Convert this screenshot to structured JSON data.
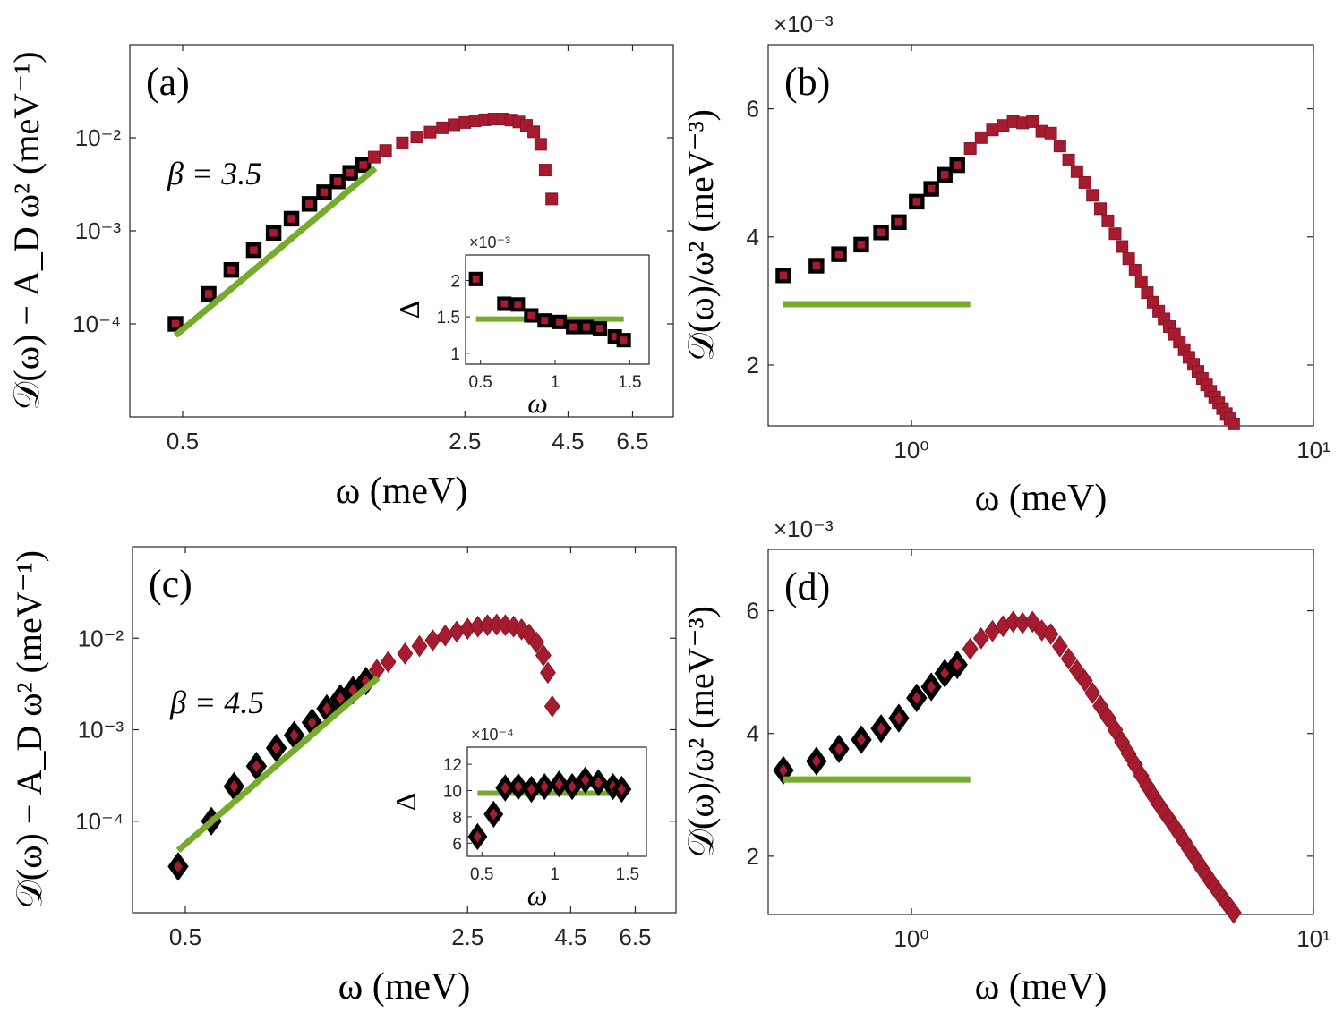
{
  "colors": {
    "marker_fill": "#a61b2f",
    "marker_edge": "#8a1526",
    "highlight_edge": "#000000",
    "fit_line": "#77ab2c",
    "axis": "#262626"
  },
  "chart_data": [
    {
      "panel": "a",
      "type": "scatter",
      "scale": "loglog",
      "marker": "square",
      "panel_label": "(a)",
      "annotation": "β = 3.5",
      "ylabel": "𝒟(ω) − A_D ω² (meV⁻¹)",
      "xlabel": "ω (meV)",
      "xlim": [
        0.37,
        8.2
      ],
      "ylim": [
        1e-05,
        0.1
      ],
      "xticks": [
        0.5,
        2.5,
        4.5,
        6.5
      ],
      "xtick_labels": [
        "0.5",
        "2.5",
        "4.5",
        "6.5"
      ],
      "yticks": [
        0.0001,
        0.001,
        0.01
      ],
      "ytick_labels": [
        "10⁻⁴",
        "10⁻³",
        "10⁻²"
      ],
      "x": [
        0.48,
        0.58,
        0.66,
        0.75,
        0.84,
        0.93,
        1.03,
        1.12,
        1.21,
        1.3,
        1.4,
        1.49,
        1.59,
        1.75,
        1.9,
        2.05,
        2.2,
        2.35,
        2.5,
        2.65,
        2.8,
        2.95,
        3.1,
        3.25,
        3.4,
        3.55,
        3.7,
        3.85,
        3.95,
        4.1
      ],
      "y": [
        0.0001,
        0.00021,
        0.00038,
        0.00062,
        0.00095,
        0.00135,
        0.00195,
        0.0026,
        0.0034,
        0.0042,
        0.0051,
        0.0062,
        0.0073,
        0.0088,
        0.0102,
        0.0115,
        0.0128,
        0.0138,
        0.0146,
        0.0152,
        0.0156,
        0.0159,
        0.0159,
        0.0155,
        0.0148,
        0.0136,
        0.0116,
        0.0085,
        0.0045,
        0.0022
      ],
      "highlight_count": 11,
      "fit_line": {
        "x": [
          0.48,
          1.5
        ],
        "y": [
          7.5e-05,
          0.0047
        ]
      },
      "inset": {
        "xlabel": "ω",
        "ylabel": "Δ",
        "multiplier": "×10⁻³",
        "xlim": [
          0.4,
          1.63
        ],
        "ylim": [
          0.85,
          2.35
        ],
        "xticks": [
          0.5,
          1,
          1.5
        ],
        "xtick_labels": [
          "0.5",
          "1",
          "1.5"
        ],
        "yticks": [
          1,
          1.5,
          2
        ],
        "ytick_labels": [
          "1",
          "1.5",
          "2"
        ],
        "x": [
          0.47,
          0.66,
          0.75,
          0.84,
          0.93,
          1.03,
          1.12,
          1.21,
          1.3,
          1.4,
          1.46
        ],
        "y": [
          2.02,
          1.68,
          1.67,
          1.52,
          1.45,
          1.43,
          1.36,
          1.36,
          1.34,
          1.23,
          1.18
        ],
        "fit_line": {
          "x": [
            0.47,
            1.46
          ],
          "y": [
            1.47,
            1.47
          ]
        }
      }
    },
    {
      "panel": "b",
      "type": "scatter",
      "scale": "semilogx",
      "marker": "square",
      "panel_label": "(b)",
      "multiplier": "×10⁻³",
      "ylabel": "𝒟(ω)/ω² (meV⁻³)",
      "xlabel": "ω (meV)",
      "xlim": [
        0.44,
        10
      ],
      "ylim": [
        1.05,
        7
      ],
      "xticks": [
        1,
        10
      ],
      "xtick_labels": [
        "10⁰",
        "10¹"
      ],
      "yticks": [
        2,
        4,
        6
      ],
      "ytick_labels": [
        "2",
        "4",
        "6"
      ],
      "x": [
        0.48,
        0.58,
        0.66,
        0.75,
        0.84,
        0.93,
        1.03,
        1.12,
        1.21,
        1.3,
        1.4,
        1.49,
        1.59,
        1.69,
        1.79,
        1.89,
        2.0,
        2.11,
        2.22,
        2.34,
        2.46,
        2.58,
        2.7,
        2.82,
        2.95,
        3.08,
        3.21,
        3.34,
        3.47,
        3.6,
        3.73,
        3.86,
        3.99,
        4.12,
        4.25,
        4.38,
        4.51,
        4.64,
        4.77,
        4.9,
        5.03,
        5.16,
        5.29,
        5.42,
        5.55,
        5.68,
        5.81,
        5.94,
        6.07,
        6.2,
        6.33
      ],
      "y": [
        3.4,
        3.55,
        3.73,
        3.88,
        4.07,
        4.23,
        4.55,
        4.75,
        4.97,
        5.12,
        5.38,
        5.55,
        5.67,
        5.74,
        5.8,
        5.78,
        5.8,
        5.65,
        5.62,
        5.42,
        5.2,
        5.02,
        4.85,
        4.65,
        4.44,
        4.25,
        4.05,
        3.85,
        3.66,
        3.48,
        3.3,
        3.13,
        2.98,
        2.84,
        2.72,
        2.6,
        2.48,
        2.36,
        2.24,
        2.12,
        2.01,
        1.9,
        1.79,
        1.69,
        1.59,
        1.5,
        1.41,
        1.32,
        1.24,
        1.16,
        1.08
      ],
      "highlight_count": 10,
      "fit_line": {
        "x": [
          0.48,
          1.4
        ],
        "y": [
          2.95,
          2.95
        ]
      }
    },
    {
      "panel": "c",
      "type": "scatter",
      "scale": "loglog",
      "marker": "diamond",
      "panel_label": "(c)",
      "annotation": "β = 4.5",
      "ylabel": "𝒟(ω) − A_D ω² (meV⁻¹)",
      "xlabel": "ω (meV)",
      "xlim": [
        0.37,
        8.2
      ],
      "ylim": [
        1e-05,
        0.1
      ],
      "xticks": [
        0.5,
        2.5,
        4.5,
        6.5
      ],
      "xtick_labels": [
        "0.5",
        "2.5",
        "4.5",
        "6.5"
      ],
      "yticks": [
        0.0001,
        0.001,
        0.01
      ],
      "ytick_labels": [
        "10⁻⁴",
        "10⁻³",
        "10⁻²"
      ],
      "x": [
        0.48,
        0.58,
        0.66,
        0.75,
        0.84,
        0.93,
        1.03,
        1.12,
        1.21,
        1.3,
        1.4,
        1.49,
        1.59,
        1.75,
        1.9,
        2.05,
        2.2,
        2.35,
        2.5,
        2.65,
        2.8,
        2.95,
        3.1,
        3.25,
        3.4,
        3.55,
        3.7,
        3.85,
        3.95,
        4.05
      ],
      "y": [
        3.2e-05,
        0.0001,
        0.00024,
        0.0004,
        0.00063,
        0.00087,
        0.0012,
        0.0017,
        0.0022,
        0.0027,
        0.0034,
        0.0045,
        0.0055,
        0.0068,
        0.0082,
        0.0095,
        0.0107,
        0.0118,
        0.0127,
        0.0134,
        0.0139,
        0.0141,
        0.0139,
        0.0134,
        0.0125,
        0.011,
        0.009,
        0.0065,
        0.0042,
        0.0018
      ],
      "highlight_count": 11,
      "fit_line": {
        "x": [
          0.48,
          1.5
        ],
        "y": [
          4.8e-05,
          0.0037
        ]
      },
      "inset": {
        "xlabel": "ω",
        "ylabel": "Δ",
        "multiplier": "×10⁻⁴",
        "xlim": [
          0.4,
          1.63
        ],
        "ylim": [
          5,
          13.3
        ],
        "xticks": [
          0.5,
          1,
          1.5
        ],
        "xtick_labels": [
          "0.5",
          "1",
          "1.5"
        ],
        "yticks": [
          6,
          8,
          10,
          12
        ],
        "ytick_labels": [
          "6",
          "8",
          "10",
          "12"
        ],
        "x": [
          0.47,
          0.58,
          0.66,
          0.75,
          0.84,
          0.93,
          1.03,
          1.12,
          1.21,
          1.3,
          1.4,
          1.46
        ],
        "y": [
          6.5,
          8.2,
          10.2,
          10.3,
          10.1,
          10.3,
          10.5,
          10.3,
          10.8,
          10.6,
          10.3,
          10.1
        ],
        "fit_line": {
          "x": [
            0.47,
            1.46
          ],
          "y": [
            9.8,
            9.8
          ]
        }
      }
    },
    {
      "panel": "d",
      "type": "scatter",
      "scale": "semilogx",
      "marker": "diamond",
      "panel_label": "(d)",
      "multiplier": "×10⁻³",
      "ylabel": "𝒟(ω)/ω² (meV⁻³)",
      "xlabel": "ω (meV)",
      "xlim": [
        0.44,
        10
      ],
      "ylim": [
        1.05,
        7
      ],
      "xticks": [
        1,
        10
      ],
      "xtick_labels": [
        "10⁰",
        "10¹"
      ],
      "yticks": [
        2,
        4,
        6
      ],
      "ytick_labels": [
        "2",
        "4",
        "6"
      ],
      "x": [
        0.48,
        0.58,
        0.66,
        0.75,
        0.84,
        0.93,
        1.03,
        1.12,
        1.21,
        1.3,
        1.4,
        1.49,
        1.59,
        1.69,
        1.79,
        1.89,
        2.0,
        2.11,
        2.22,
        2.34,
        2.46,
        2.58,
        2.7,
        2.82,
        2.95,
        3.08,
        3.21,
        3.34,
        3.47,
        3.6,
        3.73,
        3.86,
        3.99,
        4.12,
        4.25,
        4.38,
        4.51,
        4.64,
        4.77,
        4.9,
        5.03,
        5.16,
        5.29,
        5.42,
        5.55,
        5.68,
        5.81,
        5.94,
        6.07,
        6.2,
        6.33
      ],
      "y": [
        3.4,
        3.55,
        3.75,
        3.9,
        4.08,
        4.25,
        4.58,
        4.76,
        4.98,
        5.12,
        5.38,
        5.55,
        5.67,
        5.75,
        5.82,
        5.8,
        5.82,
        5.68,
        5.62,
        5.42,
        5.22,
        5.03,
        4.86,
        4.66,
        4.45,
        4.26,
        4.06,
        3.86,
        3.67,
        3.49,
        3.31,
        3.14,
        2.99,
        2.85,
        2.72,
        2.6,
        2.48,
        2.36,
        2.24,
        2.12,
        2.01,
        1.9,
        1.79,
        1.69,
        1.59,
        1.5,
        1.41,
        1.32,
        1.24,
        1.16,
        1.08
      ],
      "highlight_count": 10,
      "fit_line": {
        "x": [
          0.48,
          1.4
        ],
        "y": [
          3.25,
          3.25
        ]
      }
    }
  ]
}
